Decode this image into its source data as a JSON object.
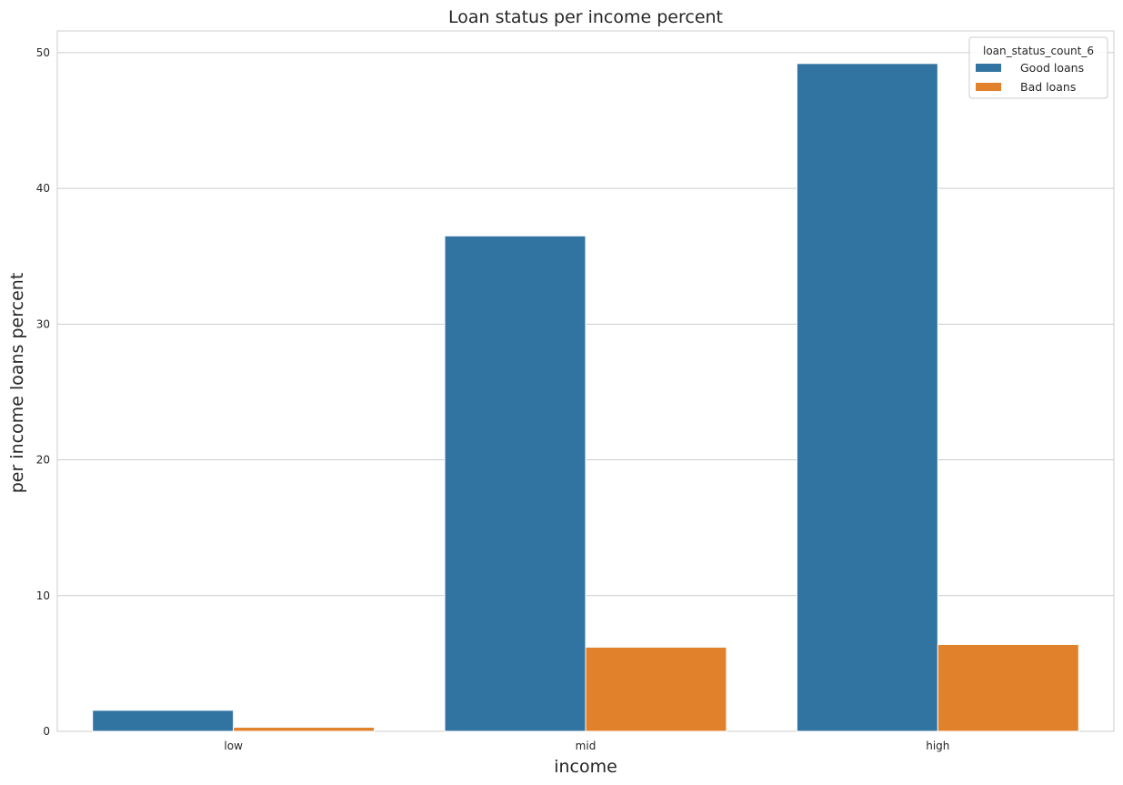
{
  "chart_data": {
    "type": "bar",
    "title": "Loan status per income percent",
    "xlabel": "income",
    "ylabel": "per income loans percent",
    "categories": [
      "low",
      "mid",
      "high"
    ],
    "series": [
      {
        "name": "Good loans",
        "color": "#3274a1",
        "values": [
          1.55,
          36.5,
          49.2
        ]
      },
      {
        "name": "Bad loans",
        "color": "#e1812c",
        "values": [
          0.3,
          6.2,
          6.4
        ]
      }
    ],
    "ylim": [
      0,
      51.6
    ],
    "yticks": [
      0,
      10,
      20,
      30,
      40,
      50
    ],
    "grid": true,
    "legend": {
      "title": "loan_status_count_6",
      "position": "top-right"
    }
  }
}
